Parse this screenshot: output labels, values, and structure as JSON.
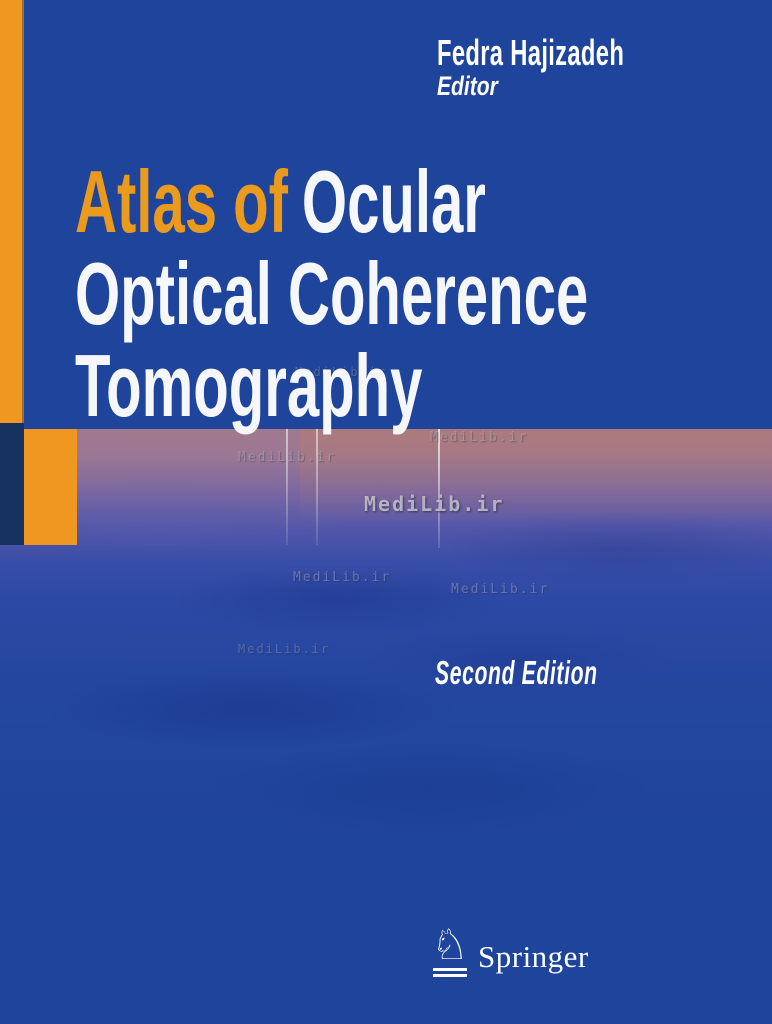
{
  "book_cover": {
    "author": {
      "name": "Fedra Hajizadeh",
      "role": "Editor"
    },
    "title": {
      "accent": "Atlas of",
      "line1_rest": "Ocular",
      "line2": "Optical Coherence",
      "line3": "Tomography"
    },
    "edition": "Second Edition",
    "publisher": {
      "name": "Springer",
      "logo_icon": "♘"
    }
  },
  "watermark": {
    "text": "MediLib.ir"
  },
  "colors": {
    "background_blue": "#1e449b",
    "accent_orange": "#ef9720",
    "navy_square": "#16325f",
    "band_mauve_top": "#a07a8e",
    "title_white": "#f5f7fb",
    "title_orange": "#ea9a1d"
  }
}
